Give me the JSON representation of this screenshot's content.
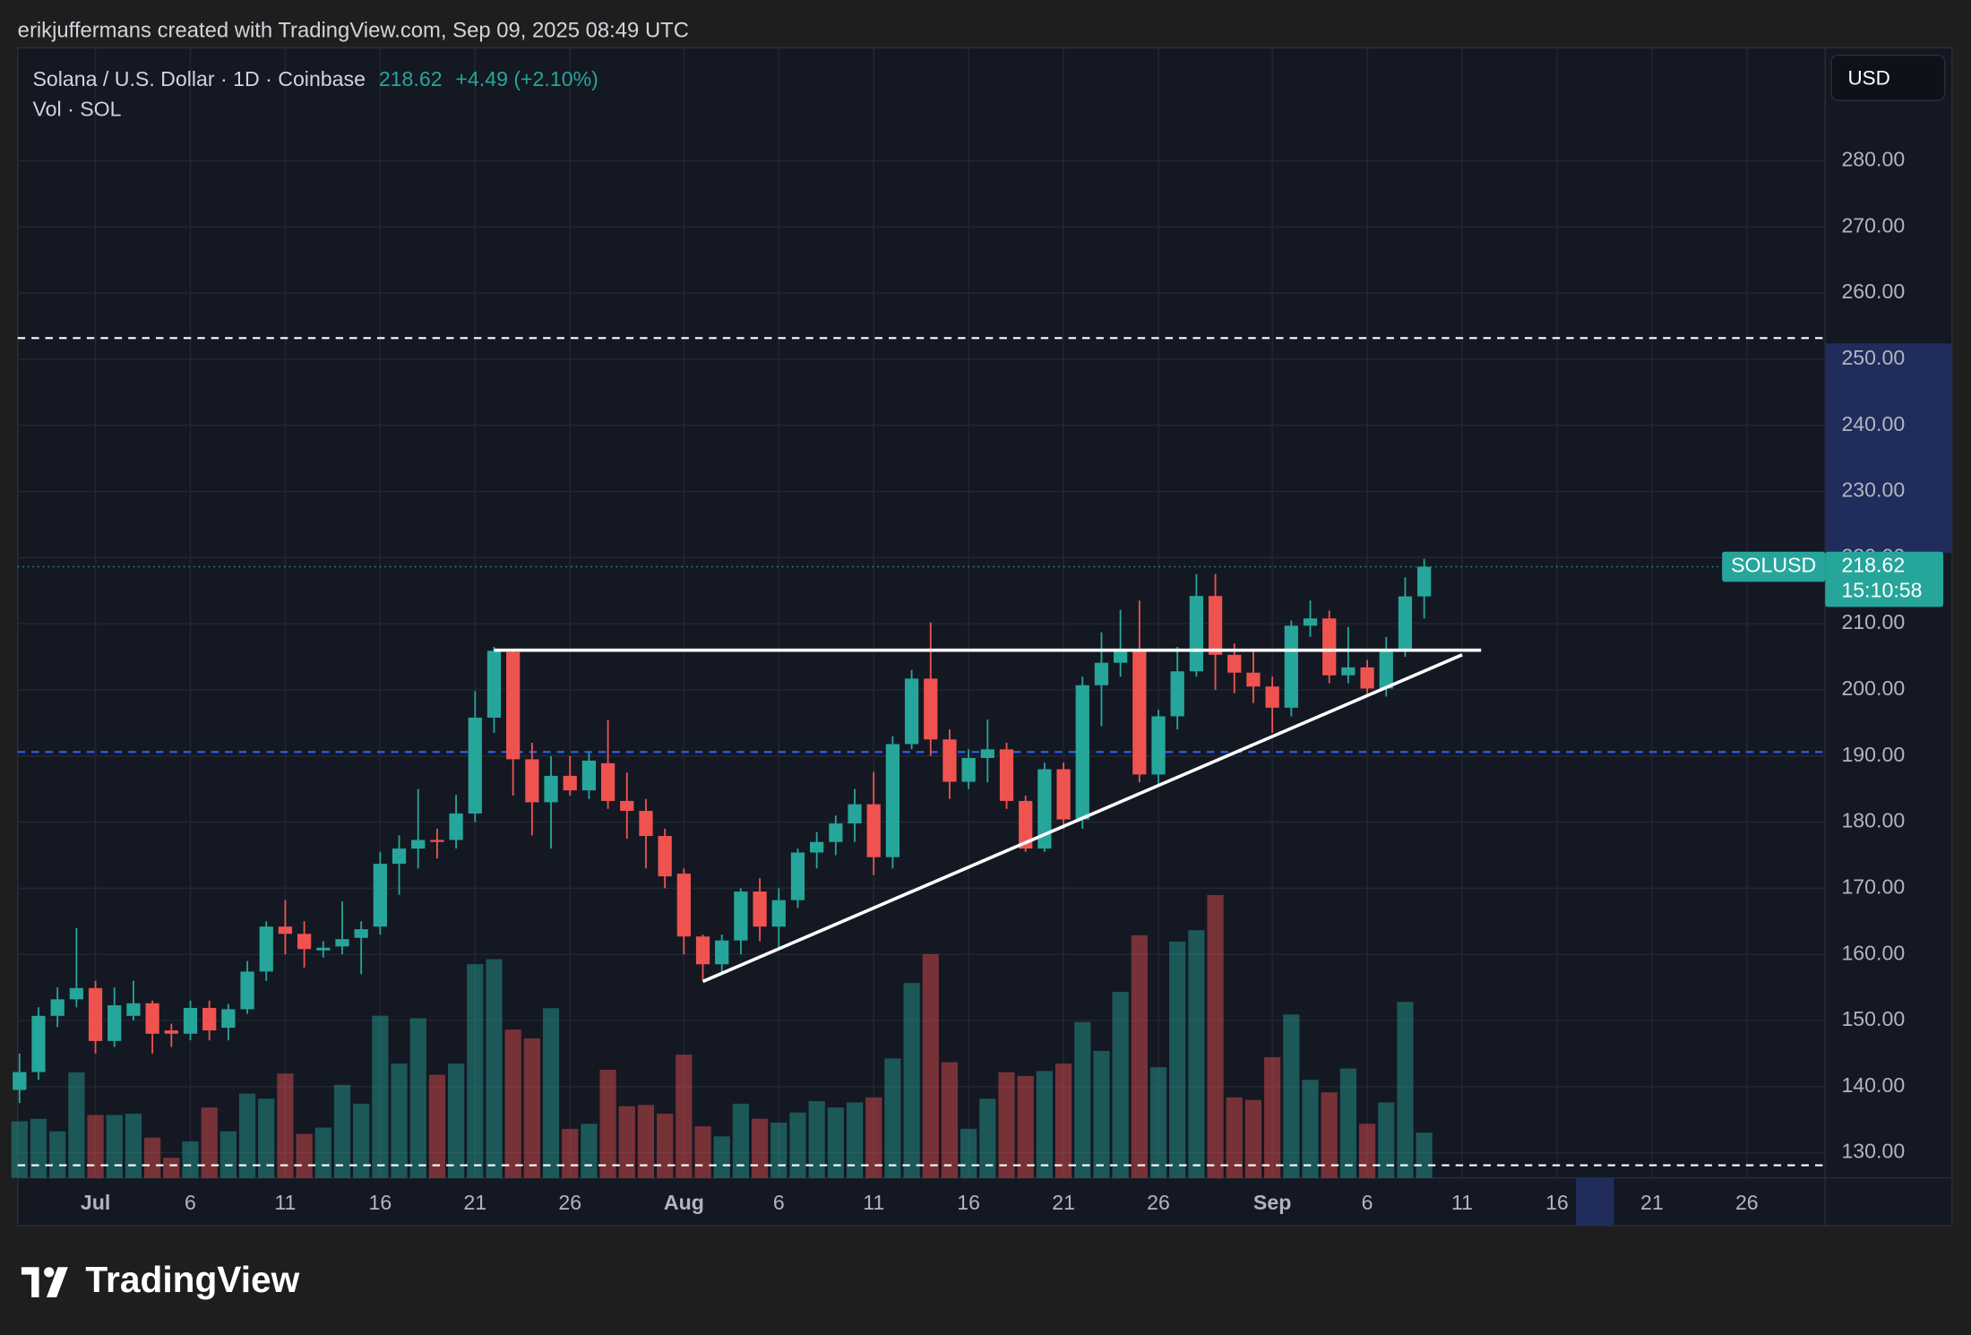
{
  "header": {
    "text": "erikjuffermans created with TradingView.com, Sep 09, 2025 08:49 UTC"
  },
  "chart_data": {
    "type": "candlestick",
    "legend": {
      "symbol": "Solana / U.S. Dollar · 1D · Coinbase",
      "change": "+4.49 (+2.10%)",
      "volume": "Vol · SOL"
    },
    "currency": "USD",
    "symbol_label": "SOLUSD",
    "countdown": "15:10:58",
    "x": [
      "2025-06-27",
      "2025-06-28",
      "2025-06-29",
      "2025-06-30",
      "2025-07-01",
      "2025-07-02",
      "2025-07-03",
      "2025-07-04",
      "2025-07-05",
      "2025-07-06",
      "2025-07-07",
      "2025-07-08",
      "2025-07-09",
      "2025-07-10",
      "2025-07-11",
      "2025-07-12",
      "2025-07-13",
      "2025-07-14",
      "2025-07-15",
      "2025-07-16",
      "2025-07-17",
      "2025-07-18",
      "2025-07-19",
      "2025-07-20",
      "2025-07-21",
      "2025-07-22",
      "2025-07-23",
      "2025-07-24",
      "2025-07-25",
      "2025-07-26",
      "2025-07-27",
      "2025-07-28",
      "2025-07-29",
      "2025-07-30",
      "2025-07-31",
      "2025-08-01",
      "2025-08-02",
      "2025-08-03",
      "2025-08-04",
      "2025-08-05",
      "2025-08-06",
      "2025-08-07",
      "2025-08-08",
      "2025-08-09",
      "2025-08-10",
      "2025-08-11",
      "2025-08-12",
      "2025-08-13",
      "2025-08-14",
      "2025-08-15",
      "2025-08-16",
      "2025-08-17",
      "2025-08-18",
      "2025-08-19",
      "2025-08-20",
      "2025-08-21",
      "2025-08-22",
      "2025-08-23",
      "2025-08-24",
      "2025-08-25",
      "2025-08-26",
      "2025-08-27",
      "2025-08-28",
      "2025-08-29",
      "2025-08-30",
      "2025-08-31",
      "2025-09-01",
      "2025-09-02",
      "2025-09-03",
      "2025-09-04",
      "2025-09-05",
      "2025-09-06",
      "2025-09-07",
      "2025-09-08",
      "2025-09-09"
    ],
    "open": [
      139.5,
      142.2,
      150.7,
      153.2,
      154.9,
      146.9,
      150.7,
      152.6,
      148.5,
      148,
      151.9,
      148.9,
      151.7,
      157.4,
      164.2,
      163.1,
      160.6,
      161.2,
      162.5,
      164.2,
      173.7,
      176,
      177.3,
      177.3,
      181.3,
      195.8,
      205.7,
      189.5,
      183,
      187,
      184.8,
      188.9,
      183.2,
      181.7,
      177.9,
      172.2,
      162.7,
      158.5,
      162.1,
      169.5,
      164.2,
      168.2,
      175.4,
      177,
      179.8,
      182.7,
      174.7,
      191.8,
      201.7,
      192.5,
      186.1,
      189.7,
      191,
      183.2,
      176,
      188,
      180.4,
      200.7,
      204.1,
      206,
      187.2,
      196,
      202.8,
      214.2,
      205.3,
      202.6,
      200.5,
      197.3,
      209.7,
      210.8,
      202.2,
      203.4,
      200.2,
      206.2,
      214.13
    ],
    "high": [
      145,
      152,
      155,
      164,
      156,
      155,
      156,
      153,
      149.5,
      153,
      153,
      152.5,
      159,
      165,
      168.2,
      165,
      162,
      168,
      165,
      175.5,
      178,
      185,
      179,
      184.1,
      199.8,
      206.5,
      206,
      192,
      190,
      190,
      190.5,
      195.4,
      187.5,
      183.5,
      179,
      173,
      163,
      163,
      170,
      171.5,
      170,
      176,
      178.5,
      181,
      185,
      187.6,
      193,
      203,
      210.2,
      194,
      191,
      195.5,
      192,
      184,
      189,
      189,
      202,
      208.7,
      212.1,
      213.5,
      197,
      206.5,
      217.5,
      217.5,
      207,
      206,
      202,
      210.5,
      213.5,
      212,
      209.5,
      204.5,
      208,
      217,
      219.8
    ],
    "low": [
      137.5,
      141,
      149,
      152,
      145,
      146,
      150,
      145,
      146,
      147,
      147,
      147,
      151,
      156,
      160,
      158,
      159.5,
      160,
      157,
      163,
      169,
      173,
      174.5,
      176,
      180,
      193.5,
      184,
      178,
      176,
      184,
      183.5,
      182,
      177.5,
      173,
      170,
      160,
      156,
      157,
      160,
      162,
      161,
      167,
      173,
      175,
      177,
      172,
      173,
      191,
      190,
      183.5,
      185,
      186,
      182,
      175.5,
      175.5,
      179,
      179,
      194.5,
      202,
      186,
      185.5,
      194,
      202,
      200,
      199.5,
      198,
      193.5,
      196,
      208,
      201,
      201,
      199,
      199,
      205,
      210.8
    ],
    "close": [
      142.2,
      150.7,
      153.2,
      154.9,
      146.9,
      152.3,
      152.6,
      148,
      148,
      151.9,
      148.5,
      151.7,
      157.4,
      164.2,
      163.1,
      160.8,
      161,
      162.3,
      163.8,
      173.7,
      176,
      177.3,
      177,
      181.3,
      195.8,
      205.9,
      189.5,
      183,
      187,
      184.8,
      189.3,
      183.2,
      181.7,
      177.9,
      171.8,
      162.7,
      158.5,
      162.1,
      169.5,
      164.2,
      168.2,
      175.4,
      177,
      179.8,
      182.7,
      174.7,
      191.8,
      201.7,
      192.5,
      186.1,
      189.7,
      191,
      183.2,
      176,
      188,
      180.4,
      200.7,
      204.1,
      206,
      187.2,
      196,
      202.8,
      214.2,
      205.3,
      202.6,
      200.5,
      197.3,
      209.7,
      210.8,
      202.2,
      203.4,
      200.2,
      206.2,
      214.13,
      218.62
    ],
    "volume": [
      45,
      47,
      37,
      84,
      50,
      50,
      51,
      32,
      16,
      29,
      56,
      37,
      67,
      63,
      83,
      35,
      40,
      74,
      59,
      129,
      91,
      127,
      82,
      91,
      170,
      174,
      118,
      111,
      135,
      39,
      43,
      86,
      57,
      58,
      51,
      98,
      41,
      33,
      59,
      47,
      44,
      52,
      61,
      56,
      60,
      64,
      95,
      155,
      178,
      92,
      39,
      63,
      84,
      81,
      85,
      91,
      124,
      101,
      148,
      193,
      88,
      188,
      197,
      225,
      64,
      62,
      96,
      130,
      78,
      68,
      87,
      43,
      60,
      140,
      36
    ],
    "up_color": "#26a69a",
    "down_color": "#ef5350",
    "xlim": [
      "2025-06-26T21:36",
      "2025-09-30T03:00"
    ],
    "xticks": [
      {
        "value": "2025-07-01",
        "label": "Jul"
      },
      {
        "value": "2025-07-06",
        "label": "6"
      },
      {
        "value": "2025-07-11",
        "label": "11"
      },
      {
        "value": "2025-07-16",
        "label": "16"
      },
      {
        "value": "2025-07-21",
        "label": "21"
      },
      {
        "value": "2025-07-26",
        "label": "26"
      },
      {
        "value": "2025-08-01",
        "label": "Aug"
      },
      {
        "value": "2025-08-06",
        "label": "6"
      },
      {
        "value": "2025-08-11",
        "label": "11"
      },
      {
        "value": "2025-08-16",
        "label": "16"
      },
      {
        "value": "2025-08-21",
        "label": "21"
      },
      {
        "value": "2025-08-26",
        "label": "26"
      },
      {
        "value": "2025-09-01",
        "label": "Sep"
      },
      {
        "value": "2025-09-06",
        "label": "6"
      },
      {
        "value": "2025-09-11",
        "label": "11"
      },
      {
        "value": "2025-09-16",
        "label": "16"
      },
      {
        "value": "2025-09-21",
        "label": "21"
      },
      {
        "value": "2025-09-26",
        "label": "26"
      }
    ],
    "ylim": [
      126.2,
      297.1
    ],
    "yticks": [
      {
        "value": 130,
        "label": "130.00"
      },
      {
        "value": 140,
        "label": "140.00"
      },
      {
        "value": 150,
        "label": "150.00"
      },
      {
        "value": 160,
        "label": "160.00"
      },
      {
        "value": 170,
        "label": "170.00"
      },
      {
        "value": 180,
        "label": "180.00"
      },
      {
        "value": 190,
        "label": "190.00"
      },
      {
        "value": 200,
        "label": "200.00"
      },
      {
        "value": 210,
        "label": "210.00"
      },
      {
        "value": 220,
        "label": "220.00"
      },
      {
        "value": 230,
        "label": "230.00"
      },
      {
        "value": 240,
        "label": "240.00"
      },
      {
        "value": 250,
        "label": "250.00"
      },
      {
        "value": 260,
        "label": "260.00"
      },
      {
        "value": 270,
        "label": "270.00"
      },
      {
        "value": 280,
        "label": "280.00"
      }
    ],
    "grid": true,
    "lines": [
      {
        "from": [
          "2025-07-22",
          206
        ],
        "to": [
          "2025-09-12",
          206
        ],
        "color": "#ffffff"
      },
      {
        "from": [
          "2025-08-02",
          155.9
        ],
        "to": [
          "2025-09-11",
          205.3
        ],
        "color": "#ffffff"
      }
    ],
    "hlines": [
      {
        "value": 253.2,
        "color": "#ffffff"
      },
      {
        "value": 190.6,
        "color": "#2962ff"
      },
      {
        "value": 128.1,
        "color": "#ffffff"
      }
    ],
    "price_range_highlight": [
      220.7,
      252.4
    ],
    "time_range_highlight": [
      "2025-09-17",
      "2025-09-19"
    ]
  },
  "footer": {
    "logo": "TradingView"
  }
}
